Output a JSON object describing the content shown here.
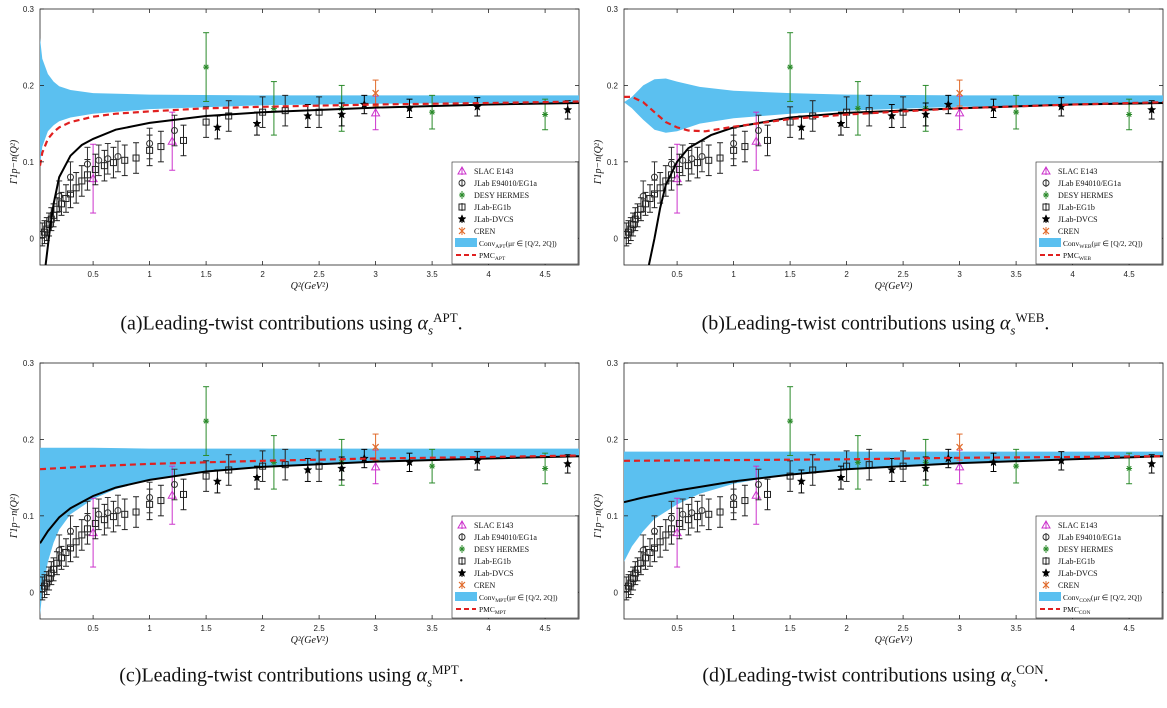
{
  "chart_data": [
    {
      "id": "a",
      "type": "line",
      "caption": "(a)Leading-twist contributions using",
      "caption_symbol": "α",
      "caption_sub": "s",
      "caption_sup": "APT",
      "band_label": "Conv",
      "band_sub": "APT",
      "band_range": "(μr ∈ [Q/2, 2Q])",
      "pmc_label": "PMC",
      "pmc_sub": "APT",
      "band_upper": [
        [
          0.03,
          0.262
        ],
        [
          0.05,
          0.235
        ],
        [
          0.1,
          0.215
        ],
        [
          0.15,
          0.205
        ],
        [
          0.2,
          0.199
        ],
        [
          0.3,
          0.194
        ],
        [
          0.5,
          0.19
        ],
        [
          1,
          0.188
        ],
        [
          2,
          0.187
        ],
        [
          3,
          0.187
        ],
        [
          4,
          0.187
        ],
        [
          4.8,
          0.187
        ]
      ],
      "band_lower": [
        [
          0.03,
          0.095
        ],
        [
          0.05,
          0.12
        ],
        [
          0.1,
          0.14
        ],
        [
          0.15,
          0.148
        ],
        [
          0.2,
          0.153
        ],
        [
          0.3,
          0.158
        ],
        [
          0.5,
          0.163
        ],
        [
          1,
          0.169
        ],
        [
          2,
          0.174
        ],
        [
          3,
          0.176
        ],
        [
          4,
          0.177
        ],
        [
          4.8,
          0.178
        ]
      ],
      "black_curve": [
        [
          0.08,
          -0.035
        ],
        [
          0.1,
          -0.01
        ],
        [
          0.12,
          0.015
        ],
        [
          0.15,
          0.045
        ],
        [
          0.2,
          0.08
        ],
        [
          0.3,
          0.108
        ],
        [
          0.4,
          0.122
        ],
        [
          0.5,
          0.13
        ],
        [
          0.7,
          0.142
        ],
        [
          1,
          0.151
        ],
        [
          1.5,
          0.16
        ],
        [
          2,
          0.165
        ],
        [
          3,
          0.171
        ],
        [
          4,
          0.175
        ],
        [
          4.8,
          0.177
        ]
      ],
      "red_curve": [
        [
          0.03,
          0.095
        ],
        [
          0.05,
          0.112
        ],
        [
          0.1,
          0.13
        ],
        [
          0.15,
          0.139
        ],
        [
          0.2,
          0.145
        ],
        [
          0.3,
          0.152
        ],
        [
          0.5,
          0.159
        ],
        [
          0.7,
          0.163
        ],
        [
          1,
          0.166
        ],
        [
          1.5,
          0.17
        ],
        [
          2,
          0.172
        ],
        [
          3,
          0.175
        ],
        [
          4,
          0.177
        ],
        [
          4.8,
          0.179
        ]
      ]
    },
    {
      "id": "b",
      "type": "line",
      "caption": "(b)Leading-twist contributions using",
      "caption_symbol": "α",
      "caption_sub": "s",
      "caption_sup": "WEB",
      "band_label": "Conv",
      "band_sub": "WEB",
      "band_range": "(μr ∈ [Q/2, 2Q])",
      "pmc_label": "PMC",
      "pmc_sub": "WEB",
      "band_upper": [
        [
          0.03,
          0.178
        ],
        [
          0.1,
          0.185
        ],
        [
          0.2,
          0.2
        ],
        [
          0.3,
          0.208
        ],
        [
          0.4,
          0.209
        ],
        [
          0.5,
          0.205
        ],
        [
          0.7,
          0.198
        ],
        [
          1,
          0.193
        ],
        [
          1.5,
          0.19
        ],
        [
          2,
          0.188
        ],
        [
          3,
          0.187
        ],
        [
          4.8,
          0.187
        ]
      ],
      "band_lower": [
        [
          0.03,
          0.178
        ],
        [
          0.1,
          0.17
        ],
        [
          0.2,
          0.155
        ],
        [
          0.3,
          0.142
        ],
        [
          0.4,
          0.138
        ],
        [
          0.5,
          0.14
        ],
        [
          0.7,
          0.15
        ],
        [
          1,
          0.157
        ],
        [
          1.5,
          0.163
        ],
        [
          2,
          0.167
        ],
        [
          3,
          0.172
        ],
        [
          4.8,
          0.177
        ]
      ],
      "black_curve": [
        [
          0.25,
          -0.035
        ],
        [
          0.3,
          0.0
        ],
        [
          0.35,
          0.04
        ],
        [
          0.4,
          0.07
        ],
        [
          0.5,
          0.1
        ],
        [
          0.6,
          0.118
        ],
        [
          0.8,
          0.135
        ],
        [
          1,
          0.145
        ],
        [
          1.5,
          0.158
        ],
        [
          2,
          0.164
        ],
        [
          3,
          0.17
        ],
        [
          4,
          0.175
        ],
        [
          4.8,
          0.177
        ]
      ],
      "red_curve": [
        [
          0.03,
          0.185
        ],
        [
          0.1,
          0.185
        ],
        [
          0.2,
          0.178
        ],
        [
          0.3,
          0.165
        ],
        [
          0.4,
          0.152
        ],
        [
          0.5,
          0.145
        ],
        [
          0.6,
          0.141
        ],
        [
          0.75,
          0.14
        ],
        [
          1,
          0.146
        ],
        [
          1.5,
          0.156
        ],
        [
          2,
          0.162
        ],
        [
          3,
          0.17
        ],
        [
          4,
          0.175
        ],
        [
          4.8,
          0.178
        ]
      ]
    },
    {
      "id": "c",
      "type": "line",
      "caption": "(c)Leading-twist contributions using",
      "caption_symbol": "α",
      "caption_sub": "s",
      "caption_sup": "MPT",
      "band_label": "Conv",
      "band_sub": "MPT",
      "band_range": "(μr ∈ [Q/2, 2Q])",
      "pmc_label": "PMC",
      "pmc_sub": "MPT",
      "band_upper": [
        [
          0.03,
          0.189
        ],
        [
          0.5,
          0.189
        ],
        [
          1,
          0.188
        ],
        [
          2,
          0.188
        ],
        [
          3,
          0.188
        ],
        [
          4.8,
          0.188
        ]
      ],
      "band_lower": [
        [
          0.03,
          -0.03
        ],
        [
          0.05,
          0.0
        ],
        [
          0.1,
          0.04
        ],
        [
          0.15,
          0.065
        ],
        [
          0.2,
          0.082
        ],
        [
          0.3,
          0.102
        ],
        [
          0.5,
          0.122
        ],
        [
          0.7,
          0.135
        ],
        [
          1,
          0.147
        ],
        [
          1.5,
          0.158
        ],
        [
          2,
          0.164
        ],
        [
          3,
          0.171
        ],
        [
          4,
          0.175
        ],
        [
          4.8,
          0.177
        ]
      ],
      "black_curve": [
        [
          0.03,
          0.064
        ],
        [
          0.1,
          0.08
        ],
        [
          0.2,
          0.098
        ],
        [
          0.3,
          0.11
        ],
        [
          0.5,
          0.126
        ],
        [
          0.7,
          0.137
        ],
        [
          1,
          0.147
        ],
        [
          1.5,
          0.158
        ],
        [
          2,
          0.164
        ],
        [
          3,
          0.171
        ],
        [
          4,
          0.175
        ],
        [
          4.8,
          0.178
        ]
      ],
      "red_curve": [
        [
          0.03,
          0.161
        ],
        [
          0.5,
          0.165
        ],
        [
          1,
          0.168
        ],
        [
          1.5,
          0.17
        ],
        [
          2,
          0.172
        ],
        [
          3,
          0.175
        ],
        [
          4,
          0.177
        ],
        [
          4.8,
          0.179
        ]
      ]
    },
    {
      "id": "d",
      "type": "line",
      "caption": "(d)Leading-twist contributions using",
      "caption_symbol": "α",
      "caption_sub": "s",
      "caption_sup": "CON",
      "band_label": "Conv",
      "band_sub": "CON",
      "band_range": "(μr ∈ [Q/2, 2Q])",
      "pmc_label": "PMC",
      "pmc_sub": "CON",
      "band_upper": [
        [
          0.03,
          0.184
        ],
        [
          1,
          0.184
        ],
        [
          2,
          0.184
        ],
        [
          3,
          0.184
        ],
        [
          4.8,
          0.184
        ]
      ],
      "band_lower": [
        [
          0.03,
          0.04
        ],
        [
          0.1,
          0.06
        ],
        [
          0.2,
          0.08
        ],
        [
          0.3,
          0.096
        ],
        [
          0.5,
          0.115
        ],
        [
          0.7,
          0.129
        ],
        [
          1,
          0.142
        ],
        [
          1.5,
          0.155
        ],
        [
          2,
          0.162
        ],
        [
          3,
          0.17
        ],
        [
          4,
          0.174
        ],
        [
          4.8,
          0.177
        ]
      ],
      "black_curve": [
        [
          0.03,
          0.118
        ],
        [
          0.2,
          0.124
        ],
        [
          0.5,
          0.133
        ],
        [
          1,
          0.145
        ],
        [
          1.5,
          0.154
        ],
        [
          2,
          0.161
        ],
        [
          3,
          0.169
        ],
        [
          4,
          0.174
        ],
        [
          4.8,
          0.178
        ]
      ],
      "red_curve": [
        [
          0.03,
          0.172
        ],
        [
          1,
          0.173
        ],
        [
          2,
          0.174
        ],
        [
          3,
          0.176
        ],
        [
          4,
          0.177
        ],
        [
          4.8,
          0.178
        ]
      ]
    }
  ],
  "axes": {
    "xlabel": "Q²(GeV²)",
    "ylabel": "Γ1p−n(Q²)",
    "xlim": [
      0.03,
      4.8
    ],
    "ylim": [
      -0.035,
      0.3
    ],
    "xticks": [
      "0.5",
      "1",
      "1.5",
      "2",
      "2.5",
      "3",
      "3.5",
      "4",
      "4.5"
    ],
    "yticks": [
      "0",
      "0.1",
      "0.2",
      "0.3"
    ]
  },
  "legend": {
    "entries": [
      "SLAC E143",
      "JLab E94010/EG1a",
      "DESY HERMES",
      "JLab-EG1b",
      "JLab-DVCS",
      "CREN"
    ],
    "placement": "lower-right"
  },
  "colors": {
    "band": "#5bc0f0",
    "pmc": "#e02020",
    "conv_line": "#000000",
    "slac": "#cc33cc",
    "jlab_eg1a": "#333333",
    "hermes": "#2a8a2a",
    "eg1b": "#222222",
    "dvcs": "#000000",
    "cren": "#e06a2a"
  },
  "data_points": {
    "slac": [
      [
        0.5,
        0.078,
        0.045
      ],
      [
        1.2,
        0.127,
        0.038
      ],
      [
        3.0,
        0.164,
        0.022
      ]
    ],
    "eg1a": [
      [
        0.2,
        0.055,
        0.02
      ],
      [
        0.3,
        0.08,
        0.02
      ],
      [
        0.45,
        0.097,
        0.022
      ],
      [
        0.55,
        0.102,
        0.02
      ],
      [
        0.63,
        0.104,
        0.02
      ],
      [
        0.72,
        0.107,
        0.02
      ],
      [
        1.0,
        0.124,
        0.02
      ],
      [
        1.22,
        0.141,
        0.02
      ]
    ],
    "hermes": [
      [
        1.5,
        0.224,
        0.045
      ],
      [
        2.1,
        0.17,
        0.035
      ],
      [
        2.7,
        0.17,
        0.03
      ],
      [
        3.5,
        0.165,
        0.022
      ],
      [
        4.5,
        0.162,
        0.02
      ]
    ],
    "eg1b": [
      [
        0.05,
        0.005,
        0.015
      ],
      [
        0.07,
        0.008,
        0.015
      ],
      [
        0.09,
        0.012,
        0.015
      ],
      [
        0.11,
        0.018,
        0.015
      ],
      [
        0.13,
        0.025,
        0.015
      ],
      [
        0.15,
        0.03,
        0.015
      ],
      [
        0.18,
        0.038,
        0.015
      ],
      [
        0.22,
        0.045,
        0.015
      ],
      [
        0.26,
        0.052,
        0.018
      ],
      [
        0.3,
        0.058,
        0.018
      ],
      [
        0.35,
        0.066,
        0.02
      ],
      [
        0.4,
        0.075,
        0.02
      ],
      [
        0.45,
        0.083,
        0.02
      ],
      [
        0.52,
        0.09,
        0.02
      ],
      [
        0.6,
        0.095,
        0.02
      ],
      [
        0.68,
        0.099,
        0.02
      ],
      [
        0.78,
        0.102,
        0.02
      ],
      [
        0.88,
        0.105,
        0.02
      ],
      [
        1.0,
        0.115,
        0.02
      ],
      [
        1.1,
        0.12,
        0.02
      ],
      [
        1.3,
        0.128,
        0.02
      ],
      [
        1.5,
        0.152,
        0.02
      ],
      [
        1.7,
        0.16,
        0.02
      ],
      [
        2.0,
        0.165,
        0.02
      ],
      [
        2.2,
        0.167,
        0.02
      ],
      [
        2.5,
        0.165,
        0.02
      ]
    ],
    "dvcs": [
      [
        1.6,
        0.145,
        0.015
      ],
      [
        1.95,
        0.15,
        0.015
      ],
      [
        2.4,
        0.16,
        0.015
      ],
      [
        2.7,
        0.162,
        0.015
      ],
      [
        2.9,
        0.175,
        0.012
      ],
      [
        3.3,
        0.17,
        0.012
      ],
      [
        3.9,
        0.172,
        0.012
      ],
      [
        4.7,
        0.168,
        0.012
      ]
    ],
    "cren": [
      [
        3.0,
        0.19,
        0.017
      ]
    ]
  }
}
